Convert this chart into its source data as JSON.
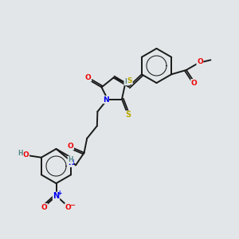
{
  "bg_color": "#e2e6e8",
  "bond_color": "#1a1a1a",
  "colors": {
    "N": "#0000ee",
    "O": "#ee0000",
    "S": "#bbaa00",
    "H": "#558888",
    "C": "#1a1a1a"
  },
  "lw": 1.3
}
